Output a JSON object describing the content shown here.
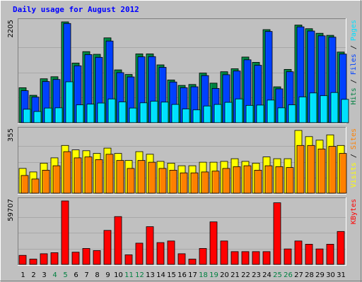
{
  "chart_data": {
    "type": "bar",
    "title": "Daily usage for August 2012",
    "categories": [
      "1",
      "2",
      "3",
      "4",
      "5",
      "6",
      "7",
      "8",
      "9",
      "10",
      "11",
      "12",
      "13",
      "14",
      "15",
      "16",
      "17",
      "18",
      "19",
      "20",
      "21",
      "22",
      "23",
      "24",
      "25",
      "26",
      "27",
      "28",
      "29",
      "30",
      "31"
    ],
    "weekend_days": [
      "4",
      "5",
      "11",
      "12",
      "18",
      "19",
      "25",
      "26"
    ],
    "panels": [
      {
        "id": "hits_files_pages",
        "ymax": 2205,
        "ymax_label": "2205",
        "side_label": [
          "Pages",
          "Files",
          "Hits"
        ],
        "series": [
          {
            "name": "Hits",
            "color": "#008040",
            "values": [
              765,
              600,
              960,
              1005,
              2205,
              1305,
              1555,
              1495,
              1855,
              1155,
              1055,
              1505,
              1505,
              1265,
              935,
              815,
              835,
              1085,
              865,
              1115,
              1180,
              1435,
              1320,
              2035,
              785,
              1165,
              2135,
              2055,
              1955,
              1910,
              1545
            ]
          },
          {
            "name": "Files",
            "color": "#0040ff",
            "values": [
              700,
              560,
              900,
              945,
              2170,
              1245,
              1490,
              1430,
              1785,
              1095,
              1000,
              1440,
              1445,
              1210,
              890,
              765,
              785,
              1030,
              750,
              1050,
              1130,
              1375,
              1255,
              1995,
              740,
              1115,
              2095,
              2005,
              1900,
              1870,
              1500
            ]
          },
          {
            "name": "Pages",
            "color": "#00e0ff",
            "values": [
              295,
              245,
              320,
              325,
              895,
              390,
              405,
              430,
              520,
              455,
              320,
              435,
              470,
              450,
              400,
              300,
              280,
              365,
              400,
              445,
              520,
              380,
              385,
              495,
              325,
              390,
              565,
              650,
              590,
              660,
              510
            ]
          }
        ]
      },
      {
        "id": "visits_sites",
        "ymax": 355,
        "ymax_label": "355",
        "side_label": [
          "Sites",
          "Visits"
        ],
        "series": [
          {
            "name": "Visits",
            "color": "#ffff00",
            "values": [
              140,
              120,
              170,
              200,
              270,
              245,
              240,
              225,
              255,
              225,
              185,
              235,
              220,
              180,
              170,
              155,
              155,
              175,
              175,
              180,
              195,
              180,
              170,
              205,
              195,
              195,
              355,
              320,
              300,
              330,
              270
            ]
          },
          {
            "name": "Sites",
            "color": "#ff8000",
            "values": [
              100,
              80,
              130,
              155,
              235,
              200,
              205,
              190,
              220,
              185,
              140,
              185,
              175,
              140,
              130,
              115,
              115,
              120,
              125,
              140,
              150,
              155,
              130,
              155,
              150,
              145,
              270,
              270,
              250,
              265,
              225
            ]
          }
        ]
      },
      {
        "id": "kbytes",
        "ymax": 59707,
        "ymax_label": "59707",
        "side_label": [
          "KBytes"
        ],
        "series": [
          {
            "name": "KBytes",
            "color": "#ff0000",
            "values": [
              8500,
              5000,
              10000,
              11000,
              59707,
              11500,
              15000,
              13000,
              32000,
              45000,
              9000,
              20000,
              35500,
              20500,
              22000,
              10000,
              5000,
              15000,
              40000,
              22000,
              12000,
              12000,
              12000,
              12000,
              58000,
              14500,
              22000,
              19000,
              14500,
              19000,
              31000
            ]
          }
        ]
      }
    ]
  },
  "colors": {
    "background": "#c0c0c0",
    "plot_bg": "#c0c0c0",
    "title": "#0000ff",
    "weekday_label": "#000000",
    "weekend_label": "#008040",
    "separator": "Black"
  }
}
